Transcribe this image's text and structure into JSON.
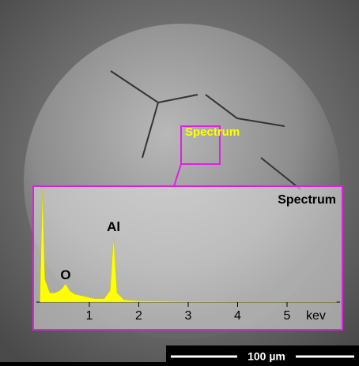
{
  "image": {
    "region_label": "Spectrum",
    "scale_bar": "100 µm"
  },
  "chart_data": {
    "type": "area",
    "title": "Spectrum",
    "color": "#ffff00",
    "x": [
      0,
      0.05,
      0.1,
      0.2,
      0.3,
      0.4,
      0.45,
      0.52,
      0.6,
      0.7,
      0.9,
      1.1,
      1.3,
      1.42,
      1.49,
      1.56,
      1.7,
      2.0,
      3,
      4,
      5,
      6
    ],
    "values": [
      0,
      99,
      20,
      8,
      8,
      10,
      12,
      16,
      10,
      7,
      5,
      3,
      3,
      10,
      57,
      8,
      2,
      1,
      0.5,
      0.3,
      0.2,
      0.2
    ],
    "xlim": [
      0,
      6.1
    ],
    "ylim": [
      0,
      100
    ],
    "xticks": [
      1,
      2,
      3,
      4,
      5
    ],
    "x_label": "kev",
    "annotations": [
      {
        "text": "O",
        "x": 0.52,
        "y": 23
      },
      {
        "text": "Al",
        "x": 1.49,
        "y": 65
      }
    ]
  }
}
